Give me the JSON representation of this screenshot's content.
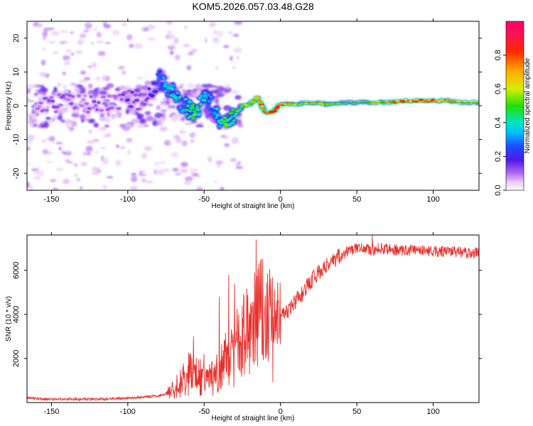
{
  "figure": {
    "title": "KOM5.2026.057.03.48.G28"
  },
  "colors": {
    "snr_line": "#e8322d",
    "axis": "#000000"
  },
  "chart_data": [
    {
      "id": "spectrogram",
      "type": "heatmap",
      "title": "KOM5.2026.057.03.48.G28",
      "xlabel": "Height of straight line (km)",
      "ylabel": "Frequency (Hz)",
      "xlim": [
        -166,
        130
      ],
      "ylim": [
        -25,
        25
      ],
      "xticks": [
        -150,
        -100,
        -50,
        0,
        50,
        100
      ],
      "xtick_labels": [
        "-150",
        "-100",
        "-50",
        "0",
        "50",
        "100"
      ],
      "yticks": [
        -20,
        -10,
        0,
        10,
        20
      ],
      "ytick_labels": [
        "-20",
        "-10",
        "0",
        "10",
        "20"
      ],
      "colorbar": {
        "label": "Normalized spectral amplitude",
        "range": [
          0.0,
          1.0
        ],
        "ticks": [
          0.0,
          0.2,
          0.4,
          0.6,
          0.8
        ],
        "tick_labels": [
          "0.0",
          "0.2",
          "0.4",
          "0.6",
          "0.8"
        ],
        "colormap": "rainbow (white-violet-blue-cyan-green-yellow-red-magenta)"
      },
      "ridge": {
        "description": "Dominant Doppler frequency trace: scattered violet blobs at -166..-40 km, descending trace -80..-35 km, stable ridge near +1 Hz for 0..130 km",
        "x": [
          -160,
          -150,
          -140,
          -130,
          -120,
          -110,
          -100,
          -90,
          -80,
          -75,
          -70,
          -65,
          -60,
          -55,
          -50,
          -45,
          -40,
          -35,
          -30,
          -25,
          -20,
          -15,
          -10,
          -5,
          0,
          10,
          20,
          30,
          40,
          50,
          60,
          70,
          80,
          90,
          100,
          110,
          120,
          130
        ],
        "y": [
          1,
          0,
          2,
          1,
          0,
          1,
          2,
          1,
          8,
          6,
          4,
          1,
          -1,
          -3,
          4,
          0,
          -4,
          -6,
          -3,
          0,
          0.5,
          2.5,
          -2,
          -2,
          0.5,
          0.5,
          1,
          0.5,
          1,
          1,
          1,
          1,
          1.5,
          1.5,
          1.5,
          1.5,
          1,
          1
        ],
        "amplitude": [
          0.1,
          0.12,
          0.12,
          0.1,
          0.12,
          0.1,
          0.15,
          0.12,
          0.25,
          0.35,
          0.4,
          0.35,
          0.45,
          0.5,
          0.35,
          0.3,
          0.4,
          0.5,
          0.45,
          0.55,
          0.6,
          0.7,
          0.75,
          0.85,
          0.9,
          0.55,
          0.6,
          0.55,
          0.5,
          0.5,
          0.55,
          0.6,
          0.8,
          0.75,
          0.8,
          0.7,
          0.55,
          0.6
        ]
      }
    },
    {
      "id": "snr",
      "type": "line",
      "xlabel": "Height of straight line (km)",
      "ylabel": "SNR (10 * v/v)",
      "xlim": [
        -166,
        130
      ],
      "ylim": [
        0,
        7600
      ],
      "xticks": [
        -150,
        -100,
        -50,
        0,
        50,
        100
      ],
      "xtick_labels": [
        "-150",
        "-100",
        "-50",
        "0",
        "50",
        "100"
      ],
      "yticks": [
        2000,
        4000,
        6000
      ],
      "ytick_labels": [
        "2000",
        "4000",
        "6000"
      ],
      "series": [
        {
          "name": "SNR",
          "x": [
            -166,
            -150,
            -140,
            -120,
            -100,
            -90,
            -80,
            -75,
            -70,
            -65,
            -60,
            -55,
            -50,
            -45,
            -40,
            -35,
            -30,
            -25,
            -20,
            -15,
            -12,
            -10,
            -5,
            0,
            5,
            10,
            15,
            20,
            25,
            30,
            35,
            40,
            45,
            50,
            55,
            60,
            65,
            70,
            80,
            90,
            100,
            110,
            120,
            130
          ],
          "y": [
            200,
            150,
            150,
            150,
            200,
            250,
            300,
            400,
            700,
            1000,
            1500,
            1300,
            1300,
            1200,
            1700,
            2200,
            2800,
            3200,
            3500,
            4000,
            4600,
            3800,
            4000,
            3900,
            4200,
            4600,
            5000,
            5500,
            5900,
            6200,
            6500,
            6700,
            6900,
            7000,
            7000,
            6900,
            7000,
            6950,
            6900,
            6900,
            6850,
            6850,
            6800,
            6800
          ],
          "peaks": [
            {
              "x": -57,
              "y": 3000
            },
            {
              "x": -50,
              "y": 2200
            },
            {
              "x": -40,
              "y": 4800
            },
            {
              "x": -34,
              "y": 5800
            },
            {
              "x": -30,
              "y": 5400
            },
            {
              "x": -16,
              "y": 7400
            },
            {
              "x": 60,
              "y": 7600
            }
          ]
        }
      ]
    }
  ]
}
